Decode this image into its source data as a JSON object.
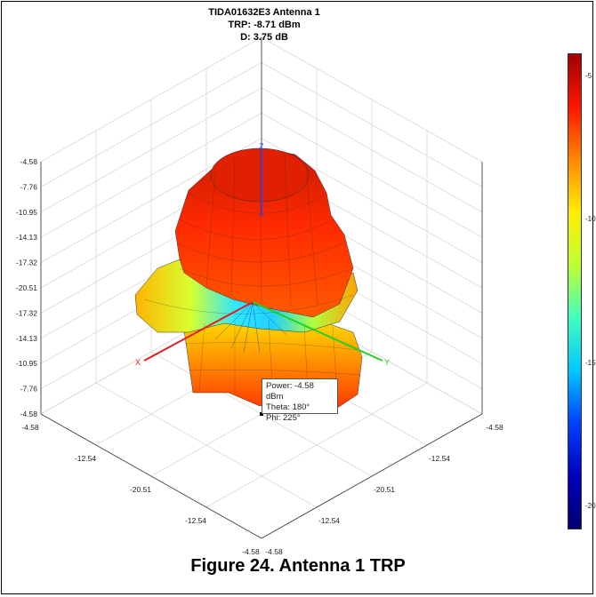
{
  "title_lines": [
    "TIDA01632E3 Antenna 1",
    "TRP: -8.71 dBm",
    "D: 3.75 dB"
  ],
  "caption": "Figure 24. Antenna 1 TRP",
  "tooltip": {
    "power": "Power: -4.58 dBm",
    "theta": "Theta: 180°",
    "phi": "Phi: 225°"
  },
  "axis_labels": {
    "x": "X",
    "y": "Y",
    "z": "Z"
  },
  "colors": {
    "x_axis": "#e02020",
    "y_axis": "#22d022",
    "z_axis": "#2040ff"
  },
  "colorbar": {
    "ticks": [
      "-5",
      "-10",
      "-15",
      "-20"
    ],
    "colormap": "jet"
  },
  "chart_data": {
    "type": "3d-radiation-pattern",
    "title": "TIDA01632E3 Antenna 1",
    "subtitle": [
      "TRP: -8.71 dBm",
      "D: 3.75 dB"
    ],
    "grid": true,
    "vertical_ticks": [
      "-4.58",
      "-7.76",
      "-10.95",
      "-14.13",
      "-17.32",
      "-20.51",
      "-17.32",
      "-14.13",
      "-10.95",
      "-7.76",
      "-4.58"
    ],
    "left_floor_ticks": [
      "-4.58",
      "-12.54",
      "-20.51",
      "-12.54",
      "-4.58"
    ],
    "right_floor_ticks": [
      "-4.58",
      "-12.54",
      "-20.51",
      "-12.54",
      "-4.58"
    ],
    "datatip": {
      "power_dbm": -4.58,
      "theta_deg": 180,
      "phi_deg": 225
    },
    "colorbar_ticks": [
      -5,
      -10,
      -15,
      -20
    ]
  }
}
